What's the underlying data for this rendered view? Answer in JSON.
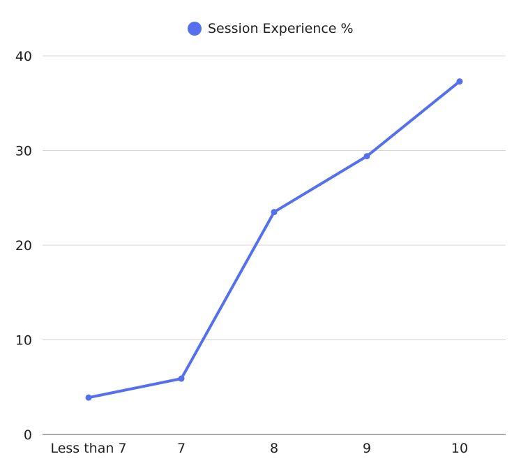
{
  "chart_data": {
    "type": "line",
    "title": "",
    "xlabel": "",
    "ylabel": "",
    "categories": [
      "Less than 7",
      "7",
      "8",
      "9",
      "10"
    ],
    "series": [
      {
        "name": "Session Experience %",
        "values": [
          3.9,
          5.9,
          23.5,
          29.4,
          37.3
        ],
        "color": "#5470ee"
      }
    ],
    "ylim": [
      0,
      40
    ],
    "yticks": [
      "0",
      "10",
      "20",
      "30",
      "40"
    ],
    "grid": true,
    "legend": "top-center"
  }
}
